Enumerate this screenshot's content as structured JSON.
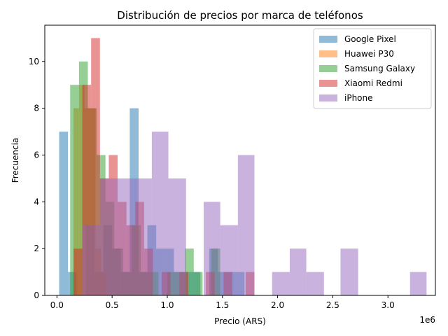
{
  "chart_data": {
    "type": "histogram",
    "title": "Distribución de precios por marca de teléfonos",
    "xlabel": "Precio (ARS)",
    "ylabel": "Frecuencia",
    "x_offset_label": "1e6",
    "x_unit_multiplier": 1000000,
    "xlim": [
      -0.11,
      3.43
    ],
    "ylim": [
      0,
      11.55
    ],
    "xticks": [
      0.0,
      0.5,
      1.0,
      1.5,
      2.0,
      2.5,
      3.0
    ],
    "xtick_labels": [
      "0.0",
      "0.5",
      "1.0",
      "1.5",
      "2.0",
      "2.5",
      "3.0"
    ],
    "yticks": [
      0,
      2,
      4,
      6,
      8,
      10
    ],
    "ytick_labels": [
      "0",
      "2",
      "4",
      "6",
      "8",
      "10"
    ],
    "grid": false,
    "legend_position": "top-right",
    "bar_opacity": 0.5,
    "series": [
      {
        "name": "Google Pixel",
        "color": "#1f77b4",
        "bins": [
          {
            "x0": 0.02,
            "x1": 0.1,
            "count": 7
          },
          {
            "x0": 0.1,
            "x1": 0.18,
            "count": 1
          },
          {
            "x0": 0.18,
            "x1": 0.26,
            "count": 0
          },
          {
            "x0": 0.26,
            "x1": 0.34,
            "count": 3
          },
          {
            "x0": 0.34,
            "x1": 0.42,
            "count": 1
          },
          {
            "x0": 0.42,
            "x1": 0.5,
            "count": 3
          },
          {
            "x0": 0.5,
            "x1": 0.58,
            "count": 2
          },
          {
            "x0": 0.58,
            "x1": 0.66,
            "count": 1
          },
          {
            "x0": 0.66,
            "x1": 0.74,
            "count": 8
          },
          {
            "x0": 0.74,
            "x1": 0.82,
            "count": 1
          },
          {
            "x0": 0.82,
            "x1": 0.9,
            "count": 3
          },
          {
            "x0": 0.9,
            "x1": 0.98,
            "count": 2
          },
          {
            "x0": 0.98,
            "x1": 1.06,
            "count": 2
          },
          {
            "x0": 1.06,
            "x1": 1.14,
            "count": 1
          },
          {
            "x0": 1.14,
            "x1": 1.22,
            "count": 1
          },
          {
            "x0": 1.22,
            "x1": 1.3,
            "count": 1
          },
          {
            "x0": 1.3,
            "x1": 1.38,
            "count": 0
          },
          {
            "x0": 1.38,
            "x1": 1.46,
            "count": 2
          },
          {
            "x0": 1.46,
            "x1": 1.54,
            "count": 1
          },
          {
            "x0": 1.54,
            "x1": 1.62,
            "count": 1
          },
          {
            "x0": 1.62,
            "x1": 1.7,
            "count": 1
          }
        ]
      },
      {
        "name": "Huawei P30",
        "color": "#ff7f0e",
        "bins": [
          {
            "x0": 0.15,
            "x1": 0.2,
            "count": 8
          },
          {
            "x0": 0.2,
            "x1": 0.25,
            "count": 9
          },
          {
            "x0": 0.25,
            "x1": 0.3,
            "count": 8
          },
          {
            "x0": 0.3,
            "x1": 0.35,
            "count": 8
          },
          {
            "x0": 0.35,
            "x1": 0.4,
            "count": 2
          },
          {
            "x0": 0.4,
            "x1": 0.45,
            "count": 1
          }
        ]
      },
      {
        "name": "Samsung Galaxy",
        "color": "#2ca02c",
        "bins": [
          {
            "x0": 0.12,
            "x1": 0.2,
            "count": 9
          },
          {
            "x0": 0.2,
            "x1": 0.28,
            "count": 10
          },
          {
            "x0": 0.28,
            "x1": 0.36,
            "count": 8
          },
          {
            "x0": 0.36,
            "x1": 0.44,
            "count": 6
          },
          {
            "x0": 0.44,
            "x1": 0.52,
            "count": 4
          },
          {
            "x0": 0.52,
            "x1": 0.6,
            "count": 2
          },
          {
            "x0": 0.6,
            "x1": 0.68,
            "count": 1
          },
          {
            "x0": 0.68,
            "x1": 0.76,
            "count": 3
          },
          {
            "x0": 0.76,
            "x1": 0.84,
            "count": 1
          },
          {
            "x0": 0.84,
            "x1": 0.92,
            "count": 1
          },
          {
            "x0": 0.92,
            "x1": 1.0,
            "count": 0
          },
          {
            "x0": 1.0,
            "x1": 1.08,
            "count": 1
          },
          {
            "x0": 1.08,
            "x1": 1.16,
            "count": 1
          },
          {
            "x0": 1.16,
            "x1": 1.24,
            "count": 2
          },
          {
            "x0": 1.24,
            "x1": 1.32,
            "count": 1
          },
          {
            "x0": 1.32,
            "x1": 1.4,
            "count": 0
          },
          {
            "x0": 1.4,
            "x1": 1.48,
            "count": 2
          }
        ]
      },
      {
        "name": "Xiaomi Redmi",
        "color": "#d62728",
        "bins": [
          {
            "x0": 0.15,
            "x1": 0.23,
            "count": 2
          },
          {
            "x0": 0.23,
            "x1": 0.31,
            "count": 9
          },
          {
            "x0": 0.31,
            "x1": 0.39,
            "count": 11
          },
          {
            "x0": 0.39,
            "x1": 0.47,
            "count": 5
          },
          {
            "x0": 0.47,
            "x1": 0.55,
            "count": 6
          },
          {
            "x0": 0.55,
            "x1": 0.63,
            "count": 4
          },
          {
            "x0": 0.63,
            "x1": 0.71,
            "count": 3
          },
          {
            "x0": 0.71,
            "x1": 0.79,
            "count": 4
          },
          {
            "x0": 0.79,
            "x1": 0.87,
            "count": 2
          },
          {
            "x0": 0.87,
            "x1": 0.95,
            "count": 0
          },
          {
            "x0": 0.95,
            "x1": 1.03,
            "count": 1
          },
          {
            "x0": 1.03,
            "x1": 1.11,
            "count": 0
          },
          {
            "x0": 1.11,
            "x1": 1.19,
            "count": 1
          },
          {
            "x0": 1.19,
            "x1": 1.27,
            "count": 0
          },
          {
            "x0": 1.27,
            "x1": 1.35,
            "count": 0
          },
          {
            "x0": 1.35,
            "x1": 1.43,
            "count": 1
          },
          {
            "x0": 1.43,
            "x1": 1.51,
            "count": 0
          },
          {
            "x0": 1.51,
            "x1": 1.59,
            "count": 1
          },
          {
            "x0": 1.59,
            "x1": 1.67,
            "count": 0
          },
          {
            "x0": 1.67,
            "x1": 1.71,
            "count": 0
          },
          {
            "x0": 1.71,
            "x1": 1.79,
            "count": 1
          }
        ]
      },
      {
        "name": "iPhone",
        "color": "#9467bd",
        "bins": [
          {
            "x0": 0.23,
            "x1": 0.39,
            "count": 3
          },
          {
            "x0": 0.39,
            "x1": 0.55,
            "count": 5
          },
          {
            "x0": 0.55,
            "x1": 0.7,
            "count": 5
          },
          {
            "x0": 0.7,
            "x1": 0.86,
            "count": 5
          },
          {
            "x0": 0.86,
            "x1": 1.01,
            "count": 7
          },
          {
            "x0": 1.01,
            "x1": 1.17,
            "count": 5
          },
          {
            "x0": 1.17,
            "x1": 1.33,
            "count": 0
          },
          {
            "x0": 1.33,
            "x1": 1.48,
            "count": 4
          },
          {
            "x0": 1.48,
            "x1": 1.64,
            "count": 3
          },
          {
            "x0": 1.64,
            "x1": 1.79,
            "count": 6
          },
          {
            "x0": 1.79,
            "x1": 1.95,
            "count": 0
          },
          {
            "x0": 1.95,
            "x1": 2.11,
            "count": 1
          },
          {
            "x0": 2.11,
            "x1": 2.26,
            "count": 2
          },
          {
            "x0": 2.26,
            "x1": 2.42,
            "count": 1
          },
          {
            "x0": 2.42,
            "x1": 2.57,
            "count": 0
          },
          {
            "x0": 2.57,
            "x1": 2.73,
            "count": 2
          },
          {
            "x0": 2.73,
            "x1": 2.89,
            "count": 0
          },
          {
            "x0": 2.89,
            "x1": 3.04,
            "count": 0
          },
          {
            "x0": 3.04,
            "x1": 3.2,
            "count": 0
          },
          {
            "x0": 3.2,
            "x1": 3.35,
            "count": 1
          }
        ]
      }
    ]
  }
}
